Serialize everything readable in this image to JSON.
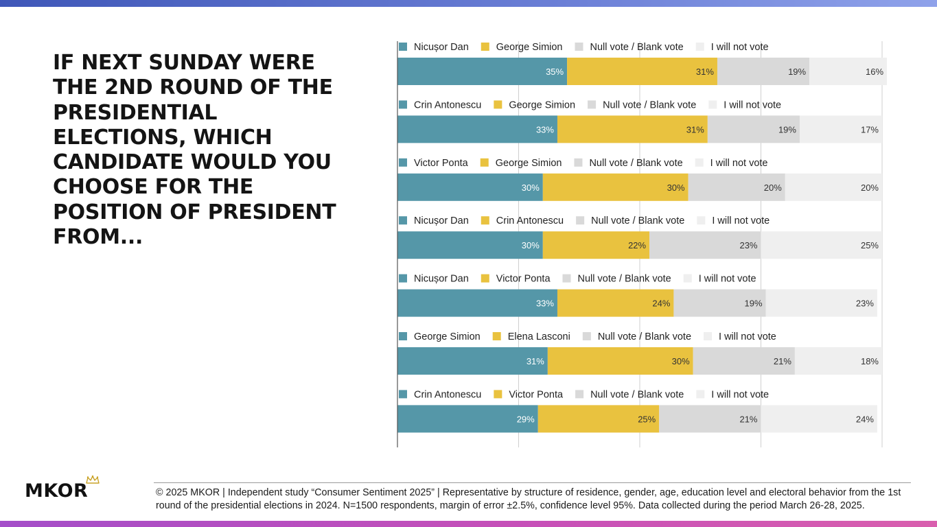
{
  "title": "IF NEXT SUNDAY WERE THE 2ND ROUND OF THE PRESIDENTIAL ELECTIONS, WHICH CANDIDATE WOULD YOU CHOOSE FOR THE POSITION OF PRESIDENT FROM...",
  "footer": "© 2025 MKOR | Independent study “Consumer Sentiment 2025” | Representative by structure of residence, gender, age, education level and electoral behavior from the 1st round of the presidential elections in 2024. N=1500 respondents, margin of error ±2.5%, confidence level 95%. Data collected during the period March 26-28, 2025.",
  "logo": {
    "text": "MKOR",
    "icon": "crown-icon"
  },
  "colors": {
    "candidate_a": "#5597a8",
    "candidate_b": "#e9c23f",
    "null_blank": "#d9d9d9",
    "not_vote": "#efefef",
    "top_gradient": "#3f57b8",
    "bottom_gradient": "#c64fb8"
  },
  "chart_data": {
    "type": "bar",
    "orientation": "horizontal",
    "stacked": true,
    "unit": "%",
    "xlim": [
      0,
      100
    ],
    "grid": true,
    "groups": [
      {
        "series": [
          {
            "name": "Nicușor Dan",
            "value": 35
          },
          {
            "name": "George Simion",
            "value": 31
          },
          {
            "name": "Null vote / Blank vote",
            "value": 19
          },
          {
            "name": "I will not vote",
            "value": 16
          }
        ]
      },
      {
        "series": [
          {
            "name": "Crin Antonescu",
            "value": 33
          },
          {
            "name": "George Simion",
            "value": 31
          },
          {
            "name": "Null vote / Blank vote",
            "value": 19
          },
          {
            "name": "I will not vote",
            "value": 17
          }
        ]
      },
      {
        "series": [
          {
            "name": "Victor Ponta",
            "value": 30
          },
          {
            "name": "George Simion",
            "value": 30
          },
          {
            "name": "Null vote / Blank vote",
            "value": 20
          },
          {
            "name": "I will not vote",
            "value": 20
          }
        ]
      },
      {
        "series": [
          {
            "name": "Nicușor Dan",
            "value": 30
          },
          {
            "name": "Crin Antonescu",
            "value": 22
          },
          {
            "name": "Null vote / Blank vote",
            "value": 23
          },
          {
            "name": "I will not vote",
            "value": 25
          }
        ]
      },
      {
        "series": [
          {
            "name": "Nicușor Dan",
            "value": 33
          },
          {
            "name": "Victor Ponta",
            "value": 24
          },
          {
            "name": "Null vote / Blank vote",
            "value": 19
          },
          {
            "name": "I will not vote",
            "value": 23
          }
        ]
      },
      {
        "series": [
          {
            "name": "George Simion",
            "value": 31
          },
          {
            "name": "Elena Lasconi",
            "value": 30
          },
          {
            "name": "Null vote / Blank vote",
            "value": 21
          },
          {
            "name": "I will not vote",
            "value": 18
          }
        ]
      },
      {
        "series": [
          {
            "name": "Crin Antonescu",
            "value": 29
          },
          {
            "name": "Victor Ponta",
            "value": 25
          },
          {
            "name": "Null vote / Blank vote",
            "value": 21
          },
          {
            "name": "I will not vote",
            "value": 24
          }
        ]
      }
    ]
  }
}
